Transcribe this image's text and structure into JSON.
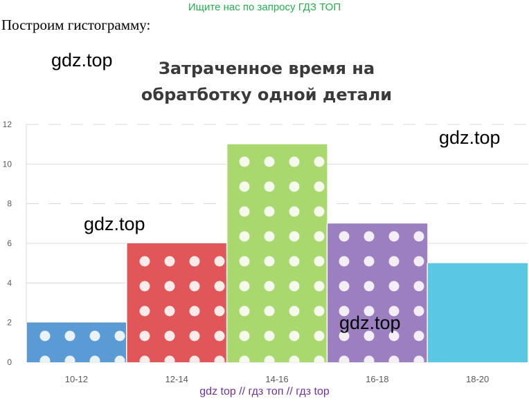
{
  "header": {
    "watermark": "Ищите нас по запросу ГДЗ ТОП",
    "intro_text": "Построим гистограмму:"
  },
  "watermarks": {
    "gdz_1": "gdz.top",
    "gdz_2": "gdz.top",
    "gdz_3": "gdz.top",
    "gdz_4": "gdz.top"
  },
  "footer": {
    "text": "gdz top  //  гдз топ  //  гдз top"
  },
  "chart_data": {
    "type": "bar",
    "title_line1": "Затраченное время на",
    "title_line2": "обратботку одной детали",
    "categories": [
      "10-12",
      "12-14",
      "14-16",
      "16-18",
      "18-20"
    ],
    "values": [
      2,
      6,
      11,
      7,
      5
    ],
    "colors": [
      "#5b9bd5",
      "#e15759",
      "#a9d86e",
      "#9b7fc0",
      "#5bc8e3"
    ],
    "patterned": [
      true,
      true,
      true,
      true,
      false
    ],
    "y_ticks": [
      "0",
      "2",
      "4",
      "6",
      "8",
      "10",
      "12"
    ],
    "ylim": [
      0,
      12
    ],
    "grid": true,
    "xlabel": "",
    "ylabel": ""
  }
}
